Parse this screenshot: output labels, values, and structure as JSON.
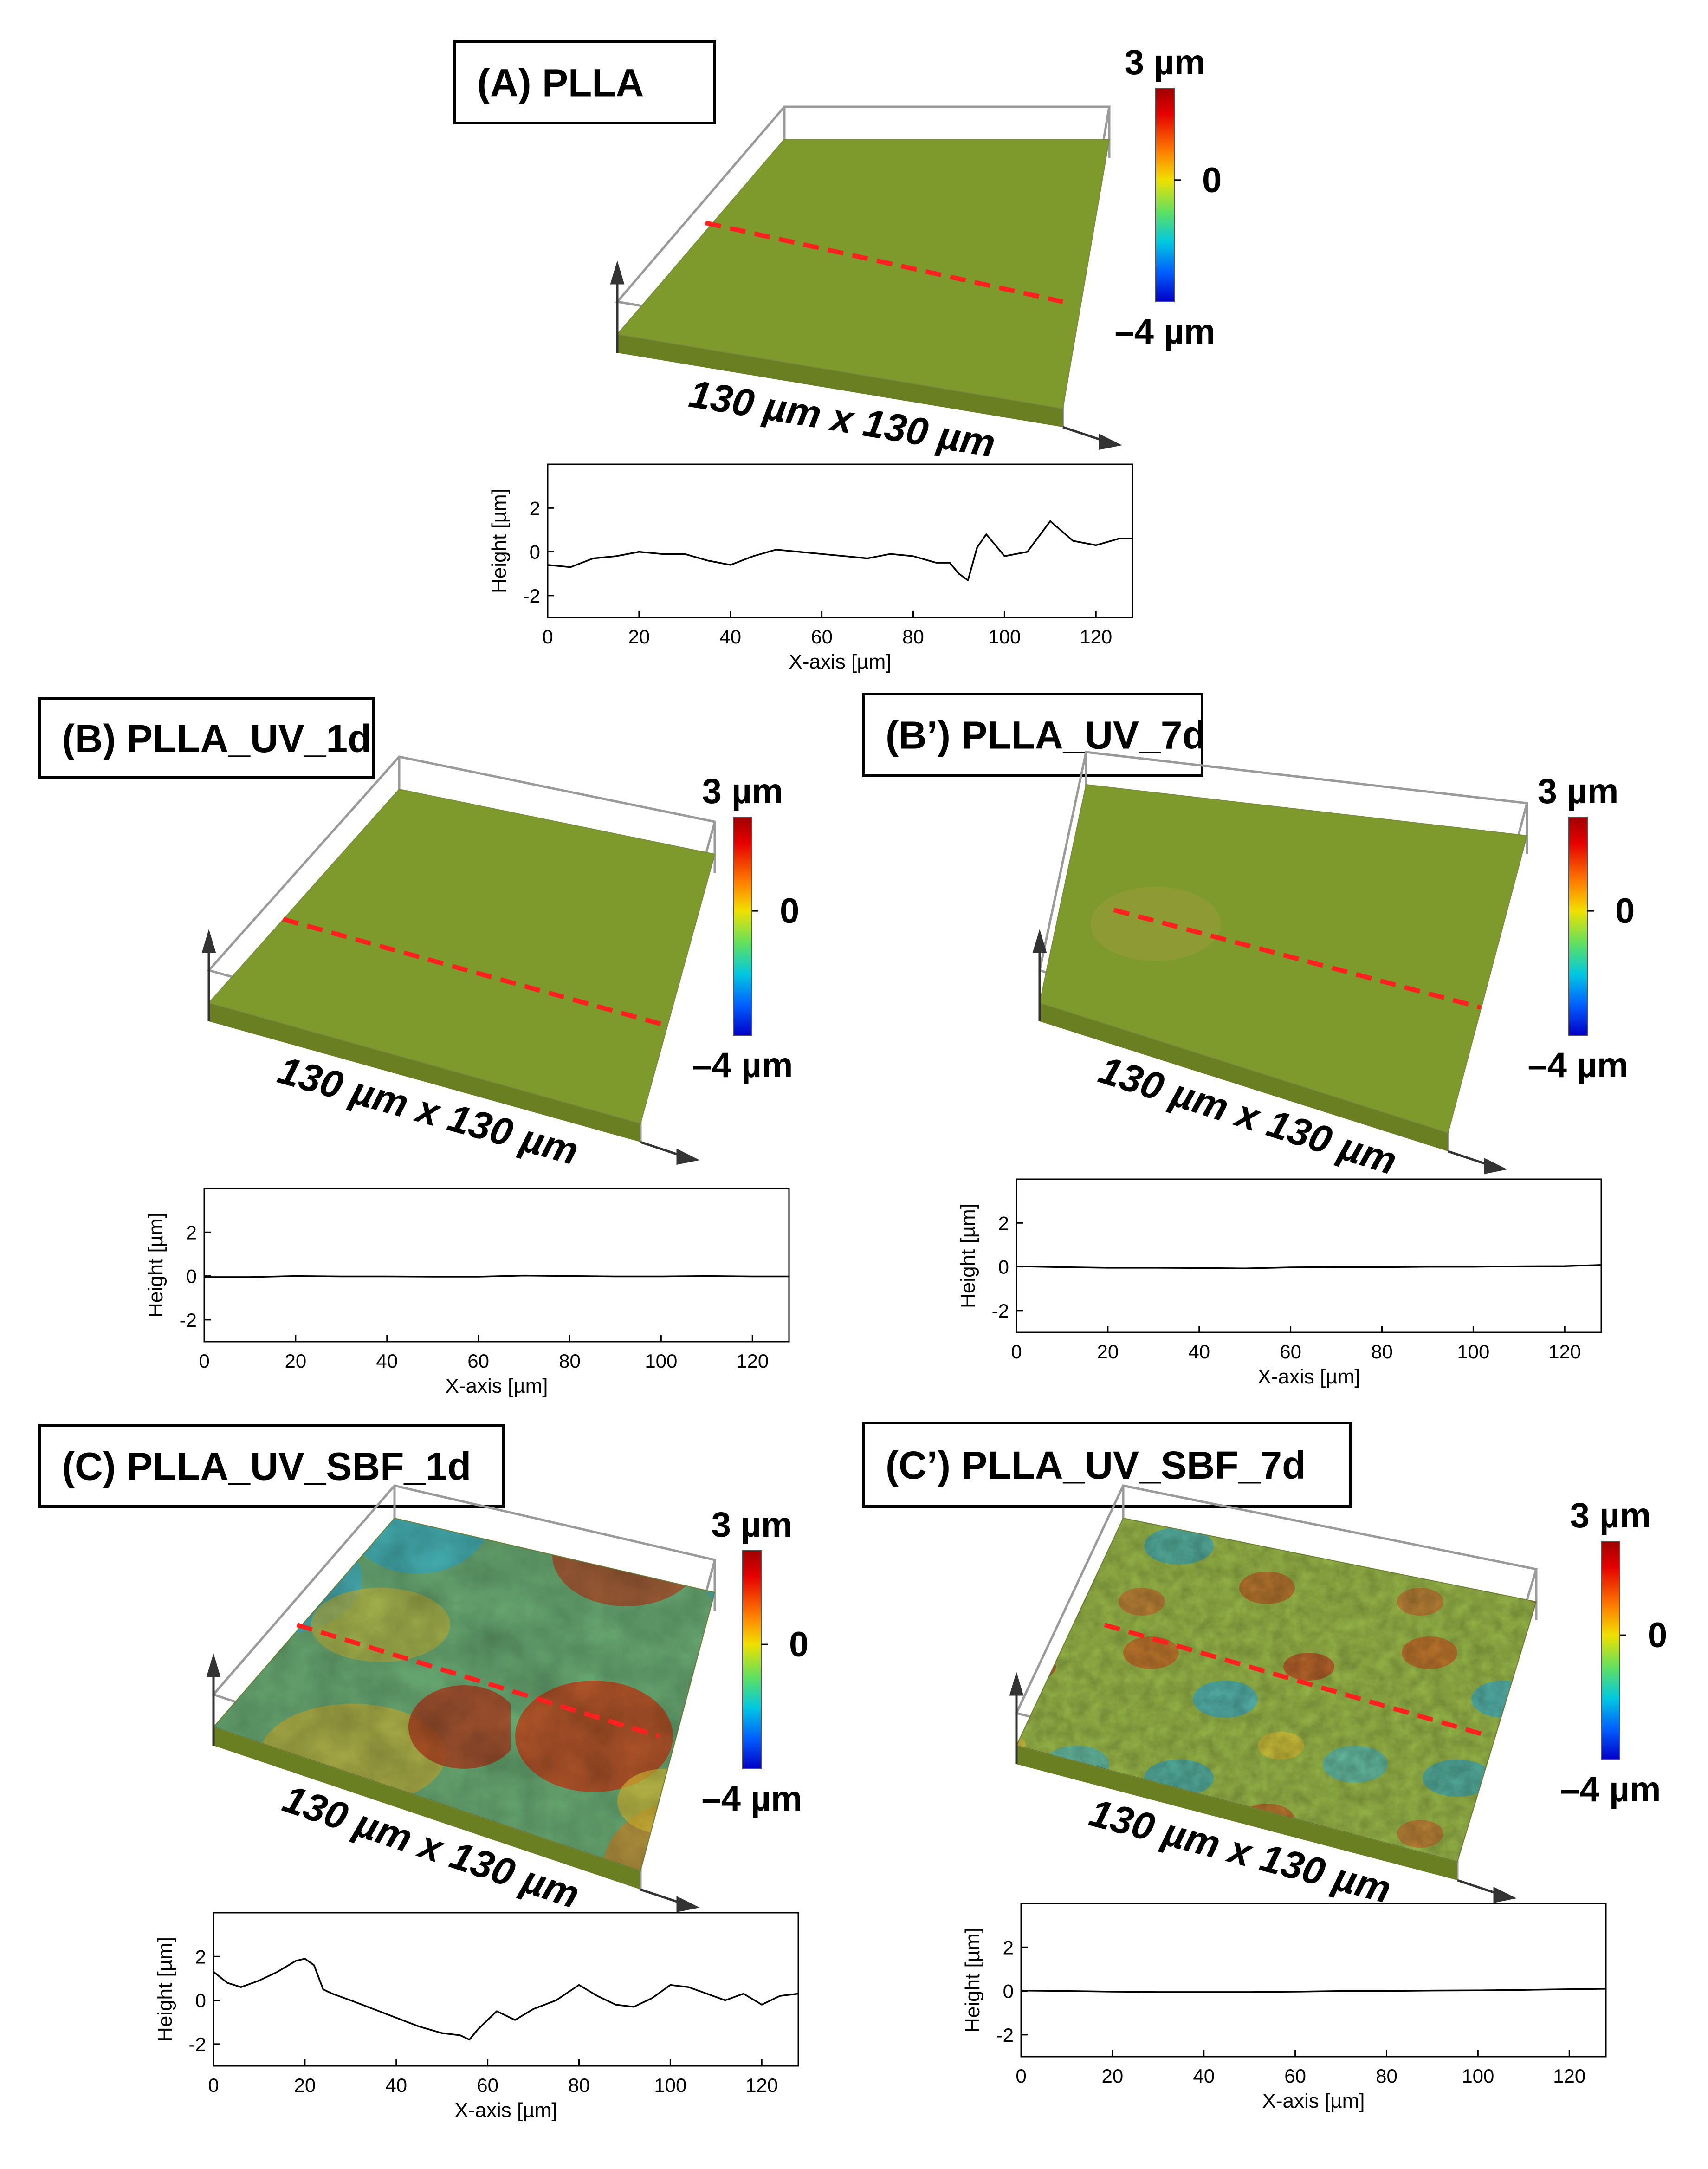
{
  "colors": {
    "surface_flat": "#7e9a2c",
    "scan_line": "#ff2020",
    "colorbar_top": "#a00000",
    "colorbar_bottom": "#0000c8"
  },
  "panels": [
    {
      "id": "A",
      "title": "(A) PLLA",
      "surface": "flat",
      "colorbar": {
        "max_label": "3 µm",
        "mid_label": "0",
        "min_label": "–4 µm"
      },
      "size_label": "130 µm x 130 µm"
    },
    {
      "id": "B",
      "title": "(B) PLLA_UV_1d",
      "surface": "flat",
      "colorbar": {
        "max_label": "3 µm",
        "mid_label": "0",
        "min_label": "–4 µm"
      },
      "size_label": "130 µm x 130 µm"
    },
    {
      "id": "B2",
      "title": "(B’) PLLA_UV_7d",
      "surface": "flat-with-defects",
      "colorbar": {
        "max_label": "3 µm",
        "mid_label": "0",
        "min_label": "–4 µm"
      },
      "size_label": "130 µm x 130 µm"
    },
    {
      "id": "C",
      "title": "(C) PLLA_UV_SBF_1d",
      "surface": "rough-coarse",
      "colorbar": {
        "max_label": "3 µm",
        "mid_label": "0",
        "min_label": "–4 µm"
      },
      "size_label": "130 µm x 130 µm"
    },
    {
      "id": "C2",
      "title": "(C’) PLLA_UV_SBF_7d",
      "surface": "rough-fine",
      "colorbar": {
        "max_label": "3 µm",
        "mid_label": "0",
        "min_label": "–4 µm"
      },
      "size_label": "130 µm x 130 µm"
    }
  ],
  "chart_data": [
    {
      "type": "line",
      "panel": "A",
      "xlabel": "X-axis [µm]",
      "ylabel": "Height [µm]",
      "xlim": [
        0,
        128
      ],
      "ylim": [
        -3,
        4
      ],
      "xticks": [
        0,
        20,
        40,
        60,
        80,
        100,
        120
      ],
      "yticks": [
        -2,
        0,
        2
      ],
      "series": [
        {
          "x": [
            0,
            5,
            10,
            15,
            20,
            25,
            30,
            35,
            40,
            45,
            50,
            55,
            60,
            65,
            70,
            75,
            80,
            85,
            88,
            90,
            92,
            94,
            96,
            100,
            105,
            110,
            115,
            120,
            125,
            128
          ],
          "y": [
            -0.6,
            -0.7,
            -0.3,
            -0.2,
            0.0,
            -0.1,
            -0.1,
            -0.4,
            -0.6,
            -0.2,
            0.1,
            0.0,
            -0.1,
            -0.2,
            -0.3,
            -0.1,
            -0.2,
            -0.5,
            -0.5,
            -1.0,
            -1.3,
            0.2,
            0.8,
            -0.2,
            0.0,
            1.4,
            0.5,
            0.3,
            0.6,
            0.6
          ]
        }
      ]
    },
    {
      "type": "line",
      "panel": "B",
      "xlabel": "X-axis [µm]",
      "ylabel": "Height [µm]",
      "xlim": [
        0,
        128
      ],
      "ylim": [
        -3,
        4
      ],
      "xticks": [
        0,
        20,
        40,
        60,
        80,
        100,
        120
      ],
      "yticks": [
        -2,
        0,
        2
      ],
      "series": [
        {
          "x": [
            0,
            10,
            20,
            30,
            40,
            50,
            60,
            70,
            80,
            90,
            100,
            110,
            120,
            128
          ],
          "y": [
            -0.05,
            -0.05,
            0.0,
            -0.02,
            -0.02,
            -0.03,
            -0.03,
            0.02,
            0.0,
            -0.02,
            -0.02,
            0.0,
            -0.02,
            -0.02
          ]
        }
      ]
    },
    {
      "type": "line",
      "panel": "B2",
      "xlabel": "X-axis [µm]",
      "ylabel": "Height [µm]",
      "xlim": [
        0,
        128
      ],
      "ylim": [
        -3,
        4
      ],
      "xticks": [
        0,
        20,
        40,
        60,
        80,
        100,
        120
      ],
      "yticks": [
        -2,
        0,
        2
      ],
      "series": [
        {
          "x": [
            0,
            10,
            20,
            30,
            40,
            50,
            60,
            70,
            80,
            90,
            100,
            110,
            120,
            128
          ],
          "y": [
            0.02,
            -0.02,
            -0.05,
            -0.05,
            -0.06,
            -0.08,
            -0.03,
            -0.02,
            -0.02,
            0.0,
            0.0,
            0.02,
            0.03,
            0.08
          ]
        }
      ]
    },
    {
      "type": "line",
      "panel": "C",
      "xlabel": "X-axis [µm]",
      "ylabel": "Height [µm]",
      "xlim": [
        0,
        128
      ],
      "ylim": [
        -3,
        4
      ],
      "xticks": [
        0,
        20,
        40,
        60,
        80,
        100,
        120
      ],
      "yticks": [
        -2,
        0,
        2
      ],
      "series": [
        {
          "x": [
            0,
            3,
            6,
            10,
            14,
            18,
            20,
            22,
            24,
            26,
            30,
            35,
            40,
            45,
            50,
            54,
            56,
            58,
            62,
            66,
            70,
            75,
            80,
            84,
            88,
            92,
            96,
            100,
            104,
            108,
            112,
            116,
            120,
            124,
            128
          ],
          "y": [
            1.3,
            0.8,
            0.6,
            0.9,
            1.3,
            1.8,
            1.9,
            1.6,
            0.5,
            0.3,
            0.0,
            -0.4,
            -0.8,
            -1.2,
            -1.5,
            -1.6,
            -1.8,
            -1.3,
            -0.5,
            -0.9,
            -0.4,
            0.0,
            0.7,
            0.2,
            -0.2,
            -0.3,
            0.1,
            0.7,
            0.6,
            0.3,
            0.0,
            0.3,
            -0.2,
            0.2,
            0.3
          ]
        }
      ]
    },
    {
      "type": "line",
      "panel": "C2",
      "xlabel": "X-axis [µm]",
      "ylabel": "Height [µm]",
      "xlim": [
        0,
        128
      ],
      "ylim": [
        -3,
        4
      ],
      "xticks": [
        0,
        20,
        40,
        60,
        80,
        100,
        120
      ],
      "yticks": [
        -2,
        0,
        2
      ],
      "series": [
        {
          "x": [
            0,
            10,
            20,
            30,
            40,
            50,
            60,
            70,
            80,
            90,
            100,
            110,
            120,
            128
          ],
          "y": [
            0.02,
            0.0,
            -0.03,
            -0.05,
            -0.05,
            -0.05,
            -0.03,
            0.0,
            0.0,
            0.02,
            0.03,
            0.05,
            0.08,
            0.1
          ]
        }
      ]
    }
  ]
}
